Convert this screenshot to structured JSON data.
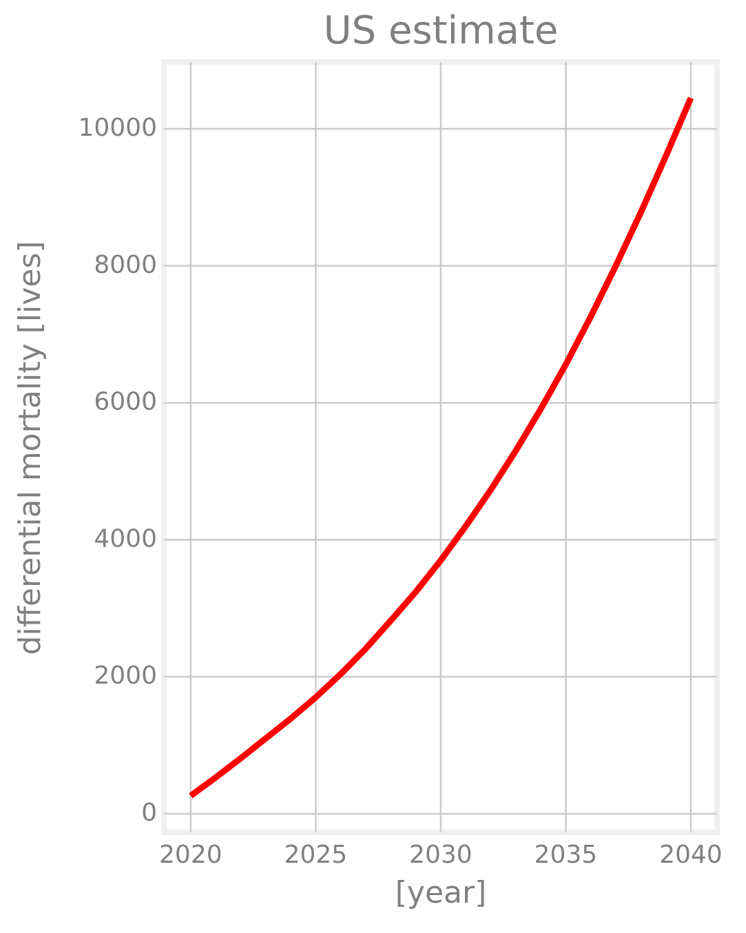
{
  "chart_data": {
    "type": "line",
    "title": "US estimate",
    "x_label": "[year]",
    "y_label": "differential mortality [lives]",
    "x": [
      2020,
      2021,
      2022,
      2023,
      2024,
      2025,
      2026,
      2027,
      2028,
      2029,
      2030,
      2031,
      2032,
      2033,
      2034,
      2035,
      2036,
      2037,
      2038,
      2039,
      2040
    ],
    "series": [
      {
        "name": "US estimate",
        "color": "#ff0000",
        "values": [
          262,
          530,
          810,
          1100,
          1390,
          1700,
          2040,
          2410,
          2820,
          3240,
          3700,
          4200,
          4730,
          5300,
          5910,
          6560,
          7260,
          8000,
          8780,
          9600,
          10450
        ]
      }
    ],
    "xlim": [
      2018.93,
      2041.05
    ],
    "ylim": [
      -272,
      10976
    ],
    "xticks": [
      2020,
      2025,
      2030,
      2035,
      2040
    ],
    "yticks": [
      0,
      2000,
      4000,
      6000,
      8000,
      10000
    ],
    "grid": true
  }
}
